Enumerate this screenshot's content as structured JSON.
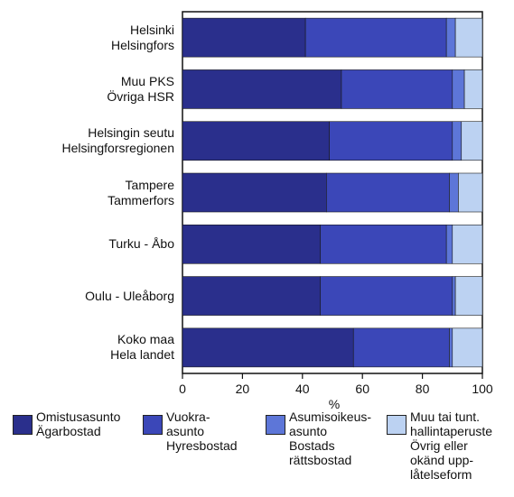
{
  "chart_data": {
    "type": "bar",
    "orientation": "horizontal",
    "stacked": true,
    "categories": [
      "Helsinki\nHelsingfors",
      "Muu PKS\nÖvriga HSR",
      "Helsingin seutu\nHelsingforsregionen",
      "Tampere\nTammerfors",
      "Turku - Åbo",
      "Oulu - Uleåborg",
      "Koko maa\nHela landet"
    ],
    "series": [
      {
        "name": "Omistusasunto\nÄgarbostad",
        "color": "#2a2f8c",
        "values": [
          41,
          53,
          49,
          48,
          46,
          46,
          57
        ]
      },
      {
        "name": "Vuokra-asunto\nHyresbostad",
        "color": "#3b47b8",
        "values": [
          47,
          37,
          41,
          41,
          42,
          44,
          32
        ]
      },
      {
        "name": "Asumisoikeus-\nasunto\nBostads\nrättsbostad",
        "color": "#5d76d8",
        "values": [
          3,
          4,
          3,
          3,
          2,
          1,
          1
        ]
      },
      {
        "name": "Muu tai tunt.\nhallintaperuste\nÖvrig eller\nokänd upp-\nlåtelseform",
        "color": "#bcd2f2",
        "values": [
          9,
          6,
          7,
          8,
          10,
          9,
          10
        ]
      }
    ],
    "xlabel": "%",
    "xlim": [
      0,
      100
    ],
    "xticks": [
      0,
      20,
      40,
      60,
      80,
      100
    ],
    "grid": false,
    "legend_position": "bottom"
  }
}
